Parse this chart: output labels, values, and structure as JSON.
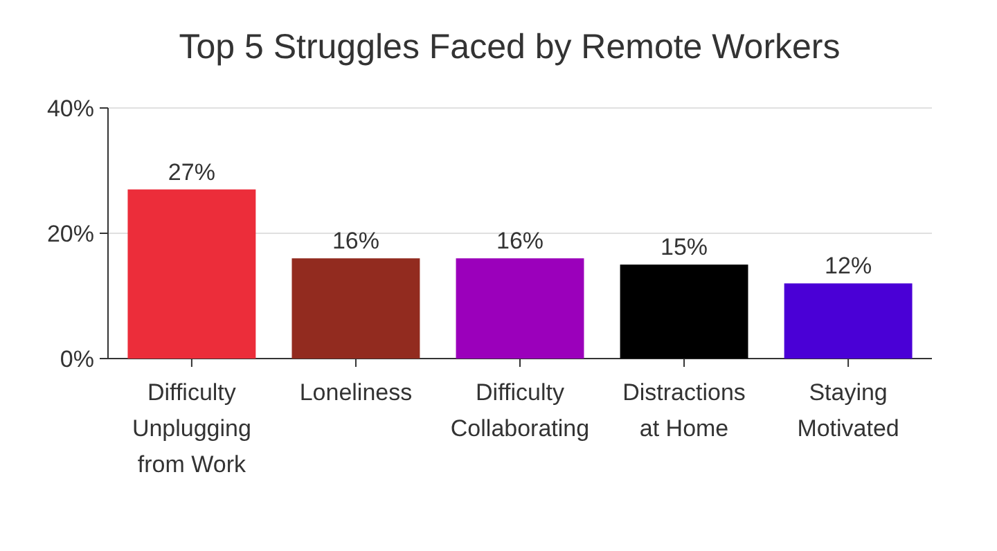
{
  "chart_data": {
    "type": "bar",
    "title": "Top 5 Struggles Faced by Remote Workers",
    "categories": [
      "Difficulty Unplugging from Work",
      "Loneliness",
      "Difficulty Collaborating",
      "Distractions at Home",
      "Staying Motivated"
    ],
    "values": [
      27,
      16,
      16,
      15,
      12
    ],
    "value_labels": [
      "27%",
      "16%",
      "16%",
      "15%",
      "12%"
    ],
    "colors": [
      "#ec2d3a",
      "#922b1f",
      "#9b00bb",
      "#000000",
      "#4a00d6"
    ],
    "ylim": [
      0,
      40
    ],
    "yticks": [
      {
        "value": 0,
        "label": "0%"
      },
      {
        "value": 20,
        "label": "20%"
      },
      {
        "value": 40,
        "label": "40%"
      }
    ],
    "grid": "y"
  }
}
